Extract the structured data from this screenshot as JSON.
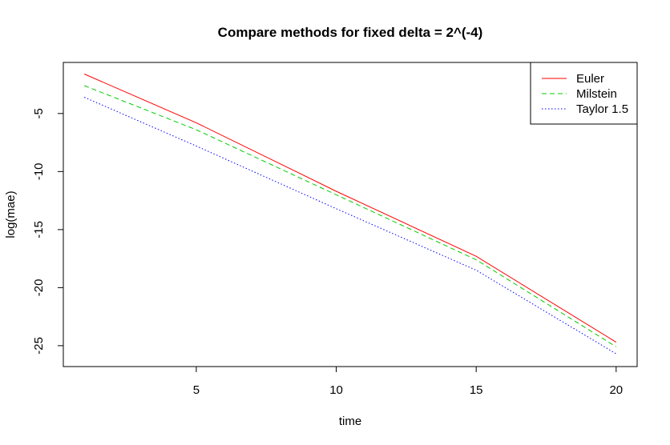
{
  "chart_data": {
    "type": "line",
    "title": "Compare methods for fixed delta = 2^(-4)",
    "xlabel": "time",
    "ylabel": "log(mae)",
    "x": [
      1,
      5,
      10,
      15,
      20
    ],
    "xlim": [
      0.25,
      20.75
    ],
    "ylim": [
      -26.8,
      -0.6
    ],
    "xticks": [
      5,
      10,
      15,
      20
    ],
    "yticks": [
      -5,
      -10,
      -15,
      -20,
      -25
    ],
    "grid": false,
    "legend_position": "top-right",
    "series": [
      {
        "name": "Euler",
        "values": [
          -1.6,
          -5.8,
          -11.7,
          -17.3,
          -24.7
        ],
        "color": "#ff0000",
        "dash": "solid"
      },
      {
        "name": "Milstein",
        "values": [
          -2.6,
          -6.4,
          -12.0,
          -17.6,
          -25.1
        ],
        "color": "#00cd00",
        "dash": "dashed"
      },
      {
        "name": "Taylor 1.5",
        "values": [
          -3.6,
          -7.8,
          -13.2,
          -18.5,
          -25.7
        ],
        "color": "#0000ff",
        "dash": "dotted"
      }
    ]
  }
}
